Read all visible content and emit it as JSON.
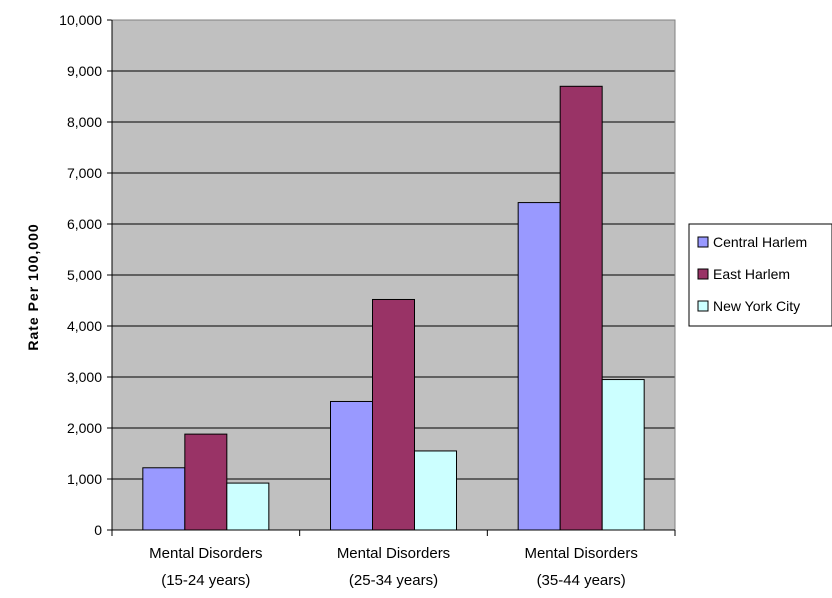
{
  "chart_data": {
    "type": "bar",
    "ylabel": "Rate Per 100,000",
    "ylim": [
      0,
      10000
    ],
    "y_ticks": [
      "0",
      "1,000",
      "2,000",
      "3,000",
      "4,000",
      "5,000",
      "6,000",
      "7,000",
      "8,000",
      "9,000",
      "10,000"
    ],
    "categories": [
      [
        "Mental Disorders",
        "(15-24 years)"
      ],
      [
        "Mental Disorders",
        "(25-34 years)"
      ],
      [
        "Mental Disorders",
        "(35-44 years)"
      ]
    ],
    "series": [
      {
        "name": "Central Harlem",
        "values": [
          1220,
          2520,
          6420
        ]
      },
      {
        "name": "East Harlem",
        "values": [
          1880,
          4520,
          8700
        ]
      },
      {
        "name": "New York City",
        "values": [
          920,
          1550,
          2950
        ]
      }
    ],
    "grid": true,
    "legend_position": "right"
  },
  "colors": {
    "plot_background": "#c0c0c0",
    "series": [
      "#9999ff",
      "#993366",
      "#ccffff"
    ]
  }
}
